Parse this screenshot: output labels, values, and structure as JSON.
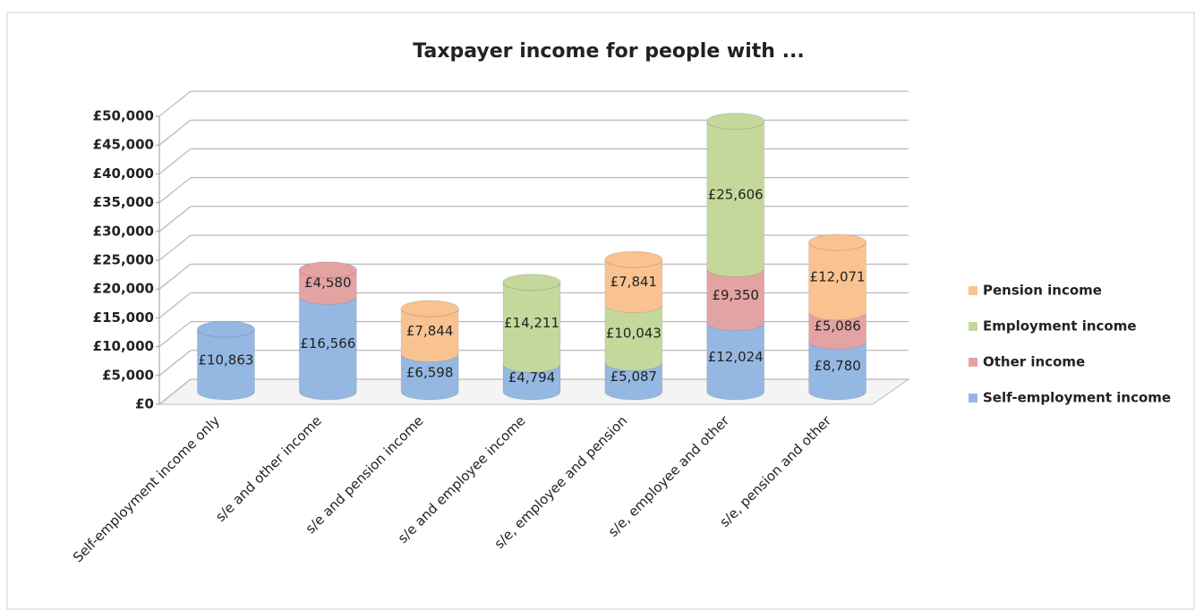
{
  "chart_data": {
    "type": "stacked-cylinder",
    "title": "Taxpayer income for people with ...",
    "categories": [
      "Self-employment income only",
      "s/e and other income",
      "s/e and pension income",
      "s/e and employee income",
      "s/e, employee and pension",
      "s/e, employee and other",
      "s/e, pension and other"
    ],
    "series": [
      {
        "name": "Self-employment income",
        "color": "#95b8e2",
        "values": [
          10863,
          16566,
          6598,
          4794,
          5087,
          12024,
          8780
        ],
        "value_labels": [
          "£10,863",
          "£16,566",
          "£6,598",
          "£4,794",
          "£5,087",
          "£12,024",
          "£8,780"
        ]
      },
      {
        "name": "Other income",
        "color": "#e3a3a2",
        "values": [
          null,
          4580,
          null,
          null,
          null,
          9350,
          5086
        ],
        "value_labels": [
          null,
          "£4,580",
          null,
          null,
          null,
          "£9,350",
          "£5,086"
        ]
      },
      {
        "name": "Employment income",
        "color": "#c4d89c",
        "values": [
          null,
          null,
          null,
          14211,
          10043,
          25606,
          null
        ],
        "value_labels": [
          null,
          null,
          null,
          "£14,211",
          "£10,043",
          "£25,606",
          null
        ]
      },
      {
        "name": "Pension income",
        "color": "#f8c390",
        "values": [
          null,
          null,
          7844,
          null,
          7841,
          null,
          12071
        ],
        "value_labels": [
          null,
          null,
          "£7,844",
          null,
          "£7,841",
          null,
          "£12,071"
        ]
      }
    ],
    "ylim": [
      0,
      50000
    ],
    "yticks": [
      {
        "value": 0,
        "label": "£0"
      },
      {
        "value": 5000,
        "label": "£5,000"
      },
      {
        "value": 10000,
        "label": "£10,000"
      },
      {
        "value": 15000,
        "label": "£15,000"
      },
      {
        "value": 20000,
        "label": "£20,000"
      },
      {
        "value": 25000,
        "label": "£25,000"
      },
      {
        "value": 30000,
        "label": "£30,000"
      },
      {
        "value": 35000,
        "label": "£35,000"
      },
      {
        "value": 40000,
        "label": "£40,000"
      },
      {
        "value": 45000,
        "label": "£45,000"
      },
      {
        "value": 50000,
        "label": "£50,000"
      }
    ],
    "grid": true,
    "legend": "right"
  }
}
